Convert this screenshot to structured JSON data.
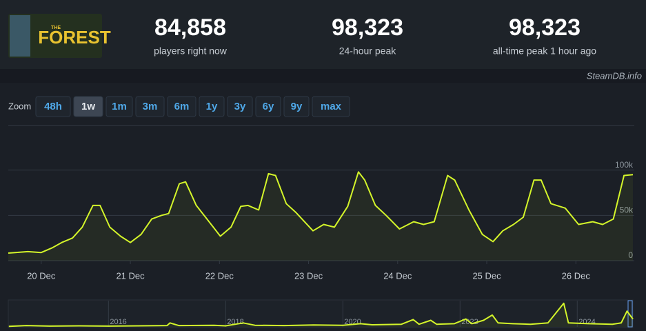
{
  "header": {
    "logo": {
      "small": "THE",
      "big": "FOREST"
    },
    "stats": [
      {
        "value": "84,858",
        "label": "players right now"
      },
      {
        "value": "98,323",
        "label": "24-hour peak"
      },
      {
        "value": "98,323",
        "label": "all-time peak 1 hour ago"
      }
    ],
    "credit": "SteamDB.info"
  },
  "zoom": {
    "label": "Zoom",
    "buttons": [
      "48h",
      "1w",
      "1m",
      "3m",
      "6m",
      "1y",
      "3y",
      "6y",
      "9y",
      "max"
    ],
    "active": "1w"
  },
  "chart_data": {
    "type": "line",
    "color": "#d4f52a",
    "x": [
      19.63,
      19.85,
      20,
      20.12,
      20.23,
      20.35,
      20.46,
      20.58,
      20.66,
      20.77,
      20.89,
      21.0,
      21.12,
      21.24,
      21.35,
      21.43,
      21.55,
      21.62,
      21.74,
      21.86,
      22.01,
      22.13,
      22.24,
      22.32,
      22.44,
      22.55,
      22.63,
      22.75,
      22.86,
      23.05,
      23.17,
      23.29,
      23.44,
      23.56,
      23.63,
      23.75,
      23.87,
      24.02,
      24.18,
      24.29,
      24.41,
      24.56,
      24.64,
      24.8,
      24.95,
      25.07,
      25.18,
      25.3,
      25.41,
      25.53,
      25.61,
      25.72,
      25.88,
      26.03,
      26.19,
      26.3,
      26.42,
      26.54,
      26.64
    ],
    "series": [
      {
        "values": [
          8400,
          10000,
          9000,
          14000,
          20000,
          25000,
          37000,
          61000,
          61000,
          37000,
          27000,
          20000,
          29000,
          46000,
          50000,
          52000,
          85000,
          87000,
          61000,
          46000,
          27000,
          37000,
          60000,
          61000,
          56000,
          96000,
          94000,
          63000,
          53000,
          33000,
          40000,
          37000,
          60000,
          98000,
          89000,
          61000,
          50000,
          35000,
          43000,
          40000,
          43000,
          94000,
          89000,
          56000,
          29000,
          21000,
          33000,
          40000,
          48000,
          89000,
          89000,
          63000,
          58000,
          40000,
          43000,
          40000,
          46000,
          94000,
          95000
        ]
      }
    ],
    "xlim": [
      19.63,
      26.64
    ],
    "xticks": [
      {
        "value": 20,
        "label": "20 Dec"
      },
      {
        "value": 21,
        "label": "21 Dec"
      },
      {
        "value": 22,
        "label": "22 Dec"
      },
      {
        "value": 23,
        "label": "23 Dec"
      },
      {
        "value": 24,
        "label": "24 Dec"
      },
      {
        "value": 25,
        "label": "25 Dec"
      },
      {
        "value": 26,
        "label": "26 Dec"
      }
    ],
    "ylim": [
      0,
      150000
    ],
    "yticks": [
      0,
      {
        "value": 50000,
        "label": "50k"
      },
      {
        "value": 100000,
        "label": "100k"
      }
    ],
    "grid": true
  },
  "navigator": {
    "type": "line",
    "color": "#d4f52a",
    "x": [
      2014.3,
      2014.6,
      2015,
      2015.5,
      2016,
      2016.5,
      2017,
      2017.05,
      2017.2,
      2017.8,
      2018,
      2018.3,
      2018.5,
      2019,
      2019.5,
      2020,
      2020.3,
      2020.5,
      2021,
      2021.2,
      2021.3,
      2021.5,
      2021.6,
      2021.9,
      2022.1,
      2022.2,
      2022.4,
      2022.55,
      2022.65,
      2022.9,
      2023.2,
      2023.5,
      2023.77,
      2023.85,
      2024.2,
      2024.6,
      2024.75,
      2024.85,
      2024.95
    ],
    "values": [
      2000,
      5000,
      3000,
      4000,
      3000,
      4000,
      5000,
      15000,
      5000,
      6000,
      4000,
      15000,
      6000,
      5000,
      7000,
      6000,
      12000,
      8000,
      10000,
      28000,
      10000,
      25000,
      10000,
      12000,
      30000,
      12000,
      25000,
      45000,
      15000,
      12000,
      10000,
      15000,
      90000,
      15000,
      12000,
      10000,
      15000,
      60000,
      30000
    ],
    "xlim": [
      2014.29,
      2024.95
    ],
    "ylim": [
      0,
      100000
    ],
    "xticks": [
      2016,
      2018,
      2020,
      2022,
      2024
    ]
  }
}
